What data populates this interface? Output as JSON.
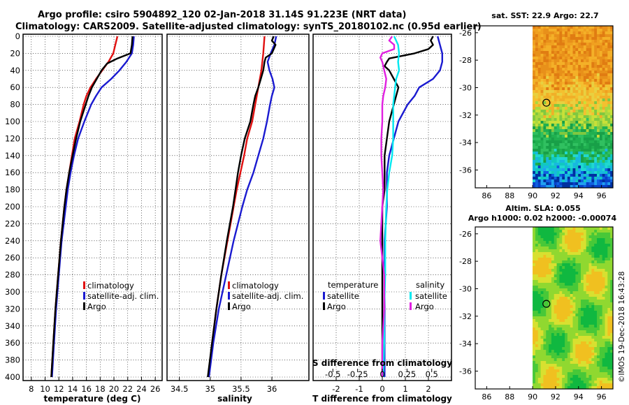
{
  "header": {
    "line1": "Argo profile: csiro 5904892_120 02-Jan-2018 31.14S 91.223E (NRT data)",
    "line2": "Climatology: CARS2009. Satellite-adjusted climatology: synTS_20180102.nc (0.95d earlier)"
  },
  "colors": {
    "climatology": "#e01010",
    "satellite": "#1a1ad0",
    "argo": "#000000",
    "satellite_salinity": "#00e8f0",
    "argo_salinity": "#e020e0"
  },
  "depth_ticks": [
    "0",
    "20",
    "40",
    "60",
    "80",
    "100",
    "120",
    "140",
    "160",
    "180",
    "200",
    "220",
    "240",
    "260",
    "280",
    "300",
    "320",
    "340",
    "360",
    "380",
    "400"
  ],
  "chart_data": [
    {
      "type": "line",
      "name": "temperature",
      "xlabel": "temperature (deg C)",
      "ylabel": "depth",
      "xlim": [
        6.8,
        27
      ],
      "ylim": [
        400,
        0
      ],
      "xticks": [
        "8",
        "10",
        "12",
        "14",
        "16",
        "18",
        "20",
        "22",
        "24",
        "26"
      ],
      "grid": true,
      "legend": [
        "climatology",
        "satellite-adj. clim.",
        "Argo"
      ],
      "series": [
        {
          "name": "climatology",
          "depth": [
            0,
            10,
            20,
            30,
            40,
            50,
            60,
            70,
            80,
            100,
            120,
            140,
            160,
            180,
            200,
            240,
            280,
            320,
            360,
            400
          ],
          "values": [
            20.5,
            20.2,
            19.9,
            19.2,
            18.3,
            17.4,
            16.6,
            16.0,
            15.6,
            15.0,
            14.3,
            13.9,
            13.5,
            13.1,
            12.8,
            12.3,
            11.9,
            11.5,
            11.2,
            10.9
          ]
        },
        {
          "name": "satellite-adj. clim.",
          "depth": [
            0,
            10,
            20,
            30,
            40,
            50,
            60,
            70,
            80,
            100,
            120,
            140,
            160,
            180,
            200,
            240,
            280,
            320,
            360,
            400
          ],
          "values": [
            22.9,
            22.8,
            22.6,
            21.8,
            20.8,
            19.6,
            18.2,
            17.4,
            16.7,
            15.7,
            14.8,
            14.2,
            13.7,
            13.3,
            13.0,
            12.4,
            12.0,
            11.6,
            11.3,
            11.0
          ]
        },
        {
          "name": "Argo",
          "depth": [
            0,
            10,
            20,
            26,
            32,
            40,
            50,
            60,
            70,
            80,
            100,
            120,
            140,
            160,
            180,
            200,
            240,
            280,
            320,
            360,
            400
          ],
          "values": [
            22.7,
            22.6,
            22.4,
            20.5,
            19.0,
            18.2,
            17.5,
            16.8,
            16.3,
            15.9,
            15.1,
            14.5,
            14.0,
            13.5,
            13.1,
            12.8,
            12.3,
            11.9,
            11.5,
            11.2,
            10.9
          ]
        }
      ]
    },
    {
      "type": "line",
      "name": "salinity",
      "xlabel": "salinity",
      "ylabel": "depth",
      "xlim": [
        34.3,
        36.6
      ],
      "ylim": [
        400,
        0
      ],
      "xticks": [
        "34.5",
        "35",
        "35.5",
        "36"
      ],
      "grid": true,
      "legend": [
        "climatology",
        "satellite-adj. clim.",
        "Argo"
      ],
      "series": [
        {
          "name": "climatology",
          "depth": [
            0,
            20,
            40,
            60,
            80,
            100,
            120,
            140,
            160,
            180,
            200,
            240,
            280,
            320,
            360,
            400
          ],
          "values": [
            35.88,
            35.86,
            35.83,
            35.78,
            35.73,
            35.68,
            35.6,
            35.55,
            35.49,
            35.43,
            35.38,
            35.28,
            35.18,
            35.1,
            35.03,
            34.97
          ]
        },
        {
          "name": "satellite-adj. clim.",
          "depth": [
            0,
            10,
            20,
            30,
            40,
            50,
            60,
            70,
            80,
            100,
            120,
            140,
            160,
            180,
            200,
            240,
            280,
            320,
            360,
            400
          ],
          "values": [
            36.07,
            36.04,
            35.98,
            35.93,
            35.96,
            36.01,
            36.04,
            36.0,
            35.97,
            35.92,
            35.86,
            35.78,
            35.7,
            35.6,
            35.52,
            35.38,
            35.26,
            35.14,
            35.05,
            34.98
          ]
        },
        {
          "name": "Argo",
          "depth": [
            0,
            5,
            10,
            20,
            25,
            30,
            40,
            50,
            60,
            70,
            80,
            100,
            120,
            140,
            160,
            180,
            200,
            240,
            280,
            320,
            360,
            400
          ],
          "values": [
            36.03,
            36.0,
            36.06,
            36.0,
            35.9,
            35.88,
            35.86,
            35.82,
            35.78,
            35.73,
            35.7,
            35.65,
            35.56,
            35.5,
            35.45,
            35.41,
            35.37,
            35.27,
            35.18,
            35.1,
            35.03,
            34.96
          ]
        }
      ]
    },
    {
      "type": "line",
      "name": "difference from climatology",
      "xlabel": "T difference from climatology",
      "xlabel2": "S difference from climatology",
      "ylim": [
        400,
        0
      ],
      "xlim": [
        -3,
        3
      ],
      "xticks": [
        "-2",
        "-1",
        "0",
        "1",
        "2"
      ],
      "xticks2": [
        "-0.5",
        "-0.25",
        "0",
        "0.25",
        "0.5"
      ],
      "grid": true,
      "legend_titles": [
        "temperature",
        "salinity"
      ],
      "legend": [
        "satellite",
        "Argo",
        "satellite",
        "Argo"
      ],
      "series": [
        {
          "name": "temperature satellite",
          "depth": [
            0,
            10,
            20,
            30,
            40,
            50,
            60,
            70,
            80,
            100,
            120,
            140,
            160,
            180,
            200,
            240,
            280,
            320,
            360,
            400
          ],
          "values": [
            2.4,
            2.5,
            2.6,
            2.6,
            2.5,
            2.2,
            1.6,
            1.4,
            1.1,
            0.7,
            0.5,
            0.3,
            0.2,
            0.2,
            0.2,
            0.1,
            0.1,
            0.1,
            0.1,
            0.1
          ]
        },
        {
          "name": "temperature Argo",
          "depth": [
            0,
            5,
            10,
            15,
            20,
            26,
            30,
            35,
            40,
            50,
            60,
            70,
            80,
            100,
            120,
            140,
            160,
            180,
            200,
            240,
            280,
            320,
            360,
            400
          ],
          "values": [
            2.2,
            2.1,
            2.2,
            2.0,
            1.4,
            0.3,
            0.2,
            0.1,
            0.3,
            0.5,
            0.7,
            0.6,
            0.5,
            0.3,
            0.2,
            0.1,
            0.1,
            0.1,
            0.0,
            0.0,
            0.0,
            0.0,
            0.0,
            0.0
          ]
        },
        {
          "name": "salinity satellite",
          "depth": [
            0,
            10,
            20,
            30,
            40,
            50,
            60,
            80,
            100,
            120,
            140,
            160,
            180,
            200,
            240,
            280,
            320,
            360,
            400
          ],
          "values": [
            0.12,
            0.16,
            0.17,
            0.16,
            0.17,
            0.14,
            0.13,
            0.11,
            0.11,
            0.11,
            0.1,
            0.07,
            0.05,
            0.04,
            0.03,
            0.03,
            0.02,
            0.02,
            0.01
          ]
        },
        {
          "name": "salinity Argo",
          "depth": [
            0,
            5,
            10,
            15,
            20,
            25,
            30,
            40,
            50,
            60,
            70,
            80,
            100,
            120,
            140,
            160,
            180,
            200,
            240,
            280,
            320,
            360,
            400
          ],
          "values": [
            0.1,
            0.07,
            0.12,
            0.12,
            0.0,
            -0.02,
            0.0,
            0.02,
            0.04,
            0.03,
            0.01,
            0.0,
            0.0,
            -0.01,
            -0.01,
            0.0,
            0.01,
            0.0,
            -0.02,
            0.02,
            0.02,
            0.0,
            0.0
          ]
        }
      ]
    }
  ],
  "maps": {
    "sst": {
      "title": "sat. SST: 22.9 Argo: 22.7",
      "xticks": [
        "86",
        "88",
        "90",
        "92",
        "94",
        "96"
      ],
      "yticks": [
        "-26",
        "-28",
        "-30",
        "-32",
        "-34",
        "-36"
      ],
      "marker": {
        "lon": 91.2,
        "lat": -31.1
      }
    },
    "sla": {
      "title1": "Altim. SLA: 0.055",
      "title2": "Argo h1000: 0.02 h2000: -0.00074",
      "xticks": [
        "86",
        "88",
        "90",
        "92",
        "94",
        "96"
      ],
      "yticks": [
        "-26",
        "-28",
        "-30",
        "-32",
        "-34",
        "-36"
      ],
      "marker": {
        "lon": 91.2,
        "lat": -31.1
      }
    }
  },
  "credit": "©IMOS 19-Dec-2018 16:43:28"
}
